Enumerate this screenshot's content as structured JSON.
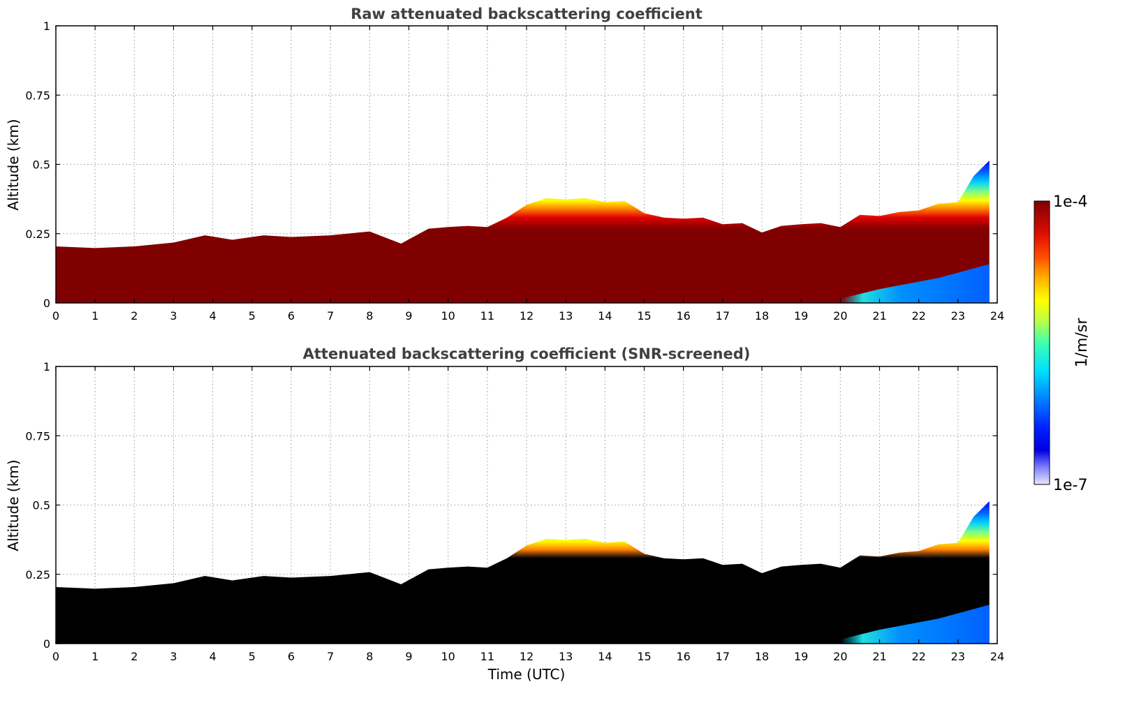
{
  "chart_data": [
    {
      "type": "heatmap",
      "title": "Raw attenuated backscattering coefficient",
      "xlabel": "",
      "ylabel": "Altitude (km)",
      "xlim": [
        0,
        24
      ],
      "ylim": [
        0,
        1
      ],
      "xticks": [
        "0",
        "1",
        "2",
        "3",
        "4",
        "5",
        "6",
        "7",
        "8",
        "9",
        "10",
        "11",
        "12",
        "13",
        "14",
        "15",
        "16",
        "17",
        "18",
        "19",
        "20",
        "21",
        "22",
        "23",
        "24"
      ],
      "yticks": [
        "0",
        "0.25",
        "0.5",
        "0.75",
        "1"
      ],
      "grid": true,
      "data_end_hour": 23.8,
      "layer_top_km": {
        "x": [
          0,
          1,
          2,
          3,
          3.8,
          4.5,
          5.3,
          6,
          7,
          8,
          8.8,
          9.5,
          10,
          10.5,
          11,
          11.5,
          12,
          12.5,
          13,
          13.5,
          14,
          14.5,
          15,
          15.5,
          16,
          16.5,
          17,
          17.5,
          18,
          18.5,
          19,
          19.5,
          20,
          20.5,
          21,
          21.5,
          22,
          22.5,
          23,
          23.4,
          23.8
        ],
        "y": [
          0.21,
          0.19,
          0.21,
          0.21,
          0.25,
          0.22,
          0.25,
          0.23,
          0.25,
          0.25,
          0.22,
          0.26,
          0.28,
          0.27,
          0.28,
          0.3,
          0.36,
          0.37,
          0.38,
          0.37,
          0.37,
          0.36,
          0.33,
          0.3,
          0.31,
          0.3,
          0.29,
          0.28,
          0.26,
          0.27,
          0.29,
          0.28,
          0.28,
          0.31,
          0.32,
          0.32,
          0.34,
          0.35,
          0.37,
          0.45,
          0.52
        ]
      },
      "low_signal_region": {
        "from_hour": 20,
        "description_value": "low backscatter near surface"
      }
    },
    {
      "type": "heatmap",
      "title": "Attenuated backscattering coefficient (SNR-screened)",
      "xlabel": "Time (UTC)",
      "ylabel": "Altitude (km)",
      "xlim": [
        0,
        24
      ],
      "ylim": [
        0,
        1
      ],
      "xticks": [
        "0",
        "1",
        "2",
        "3",
        "4",
        "5",
        "6",
        "7",
        "8",
        "9",
        "10",
        "11",
        "12",
        "13",
        "14",
        "15",
        "16",
        "17",
        "18",
        "19",
        "20",
        "21",
        "22",
        "23",
        "24"
      ],
      "yticks": [
        "0",
        "0.25",
        "0.5",
        "0.75",
        "1"
      ],
      "grid": true,
      "data_end_hour": 23.8
    }
  ],
  "colorbar": {
    "label": "1/m/sr",
    "max_label": "1e-4",
    "min_label": "1e-7",
    "colormap": [
      "#7f0000",
      "#b30000",
      "#e01000",
      "#ff4000",
      "#ff8000",
      "#ffc000",
      "#ffff00",
      "#a0ff40",
      "#40ffb0",
      "#00e0ff",
      "#00a0ff",
      "#0060ff",
      "#0020ff",
      "#0000e0",
      "#8080ff",
      "#e6e6ff"
    ]
  }
}
